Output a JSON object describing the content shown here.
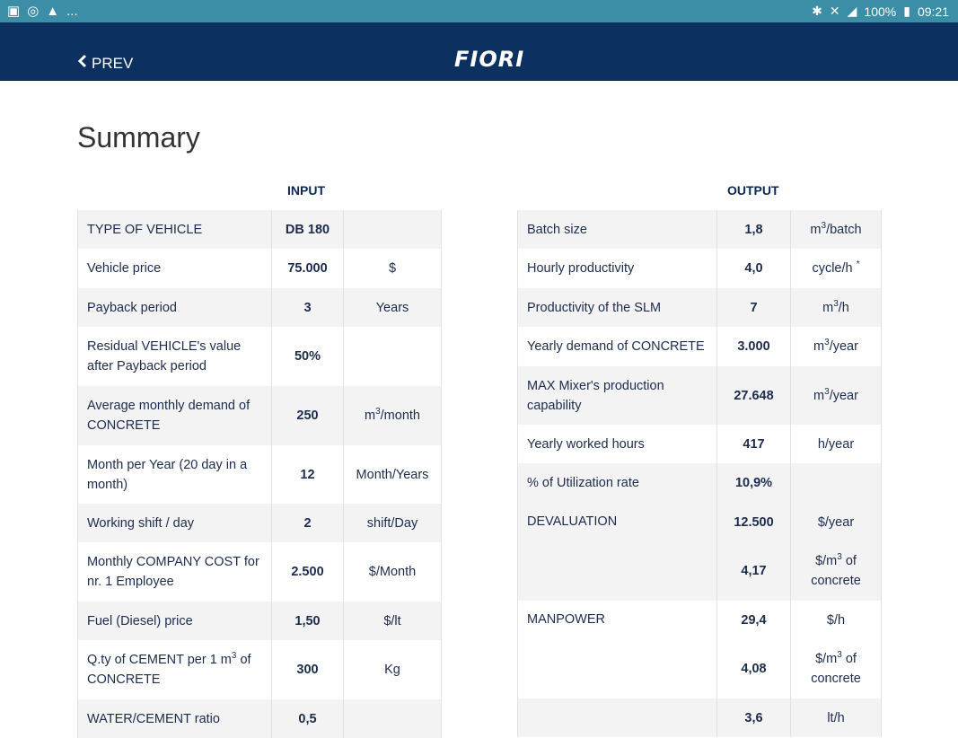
{
  "status_bar": {
    "battery": "100%",
    "time": "09:21",
    "more": "..."
  },
  "nav": {
    "prev_label": "PREV",
    "logo": "FIORI"
  },
  "page": {
    "title": "Summary",
    "input_heading": "INPUT",
    "output_heading": "OUTPUT"
  },
  "input_rows": [
    {
      "label": "TYPE OF VEHICLE",
      "value": "DB 180",
      "unit": ""
    },
    {
      "label": "Vehicle price",
      "value": "75.000",
      "unit": "$"
    },
    {
      "label": "Payback period",
      "value": "3",
      "unit": "Years"
    },
    {
      "label": "Residual VEHICLE's value after Payback period",
      "value": "50%",
      "unit": ""
    },
    {
      "label": "Average monthly demand of CONCRETE",
      "value": "250",
      "unit_pre": "m",
      "unit_sup": "3",
      "unit_post": "/month"
    },
    {
      "label": "Month per Year (20 day in a month)",
      "value": "12",
      "unit": "Month/Years"
    },
    {
      "label": "Working shift / day",
      "value": "2",
      "unit": "shift/Day"
    },
    {
      "label": "Monthly COMPANY COST for nr. 1 Employee",
      "value": "2.500",
      "unit": "$/Month"
    },
    {
      "label": "Fuel (Diesel) price",
      "value": "1,50",
      "unit": "$/lt"
    },
    {
      "label_pre": "Q.ty of CEMENT per 1 m",
      "label_sup": "3",
      "label_post": " of CONCRETE",
      "value": "300",
      "unit": "Kg"
    },
    {
      "label": "WATER/CEMENT ratio",
      "value": "0,5",
      "unit": ""
    }
  ],
  "output_rows": [
    {
      "label": "Batch size",
      "value": "1,8",
      "unit_pre": "m",
      "unit_sup": "3",
      "unit_post": "/batch"
    },
    {
      "label": "Hourly productivity",
      "value": "4,0",
      "unit_pre": "cycle/h ",
      "unit_sup": "*",
      "unit_post": ""
    },
    {
      "label": "Productivity of the SLM",
      "value": "7",
      "unit_pre": "m",
      "unit_sup": "3",
      "unit_post": "/h"
    },
    {
      "label": "Yearly demand of CONCRETE",
      "value": "3.000",
      "unit_pre": "m",
      "unit_sup": "3",
      "unit_post": "/year"
    },
    {
      "label": "MAX Mixer's production capability",
      "value": "27.648",
      "unit_pre": "m",
      "unit_sup": "3",
      "unit_post": "/year"
    },
    {
      "label": "Yearly worked hours",
      "value": "417",
      "unit_pre": "h/year",
      "unit_sup": "",
      "unit_post": ""
    },
    {
      "label": "% of Utilization rate",
      "value": "10,9%",
      "unit_pre": "",
      "unit_sup": "",
      "unit_post": ""
    }
  ],
  "devaluation": {
    "label": "DEVALUATION",
    "v1": "12.500",
    "u1": "$/year",
    "v2": "4,17",
    "u2_pre": "$/m",
    "u2_sup": "3",
    "u2_post": " of concrete"
  },
  "manpower": {
    "label": "MANPOWER",
    "v1": "29,4",
    "u1": "$/h",
    "v2": "4,08",
    "u2_pre": "$/m",
    "u2_sup": "3",
    "u2_post": " of concrete"
  },
  "fuel_partial": {
    "v1": "3,6",
    "u1": "lt/h"
  }
}
